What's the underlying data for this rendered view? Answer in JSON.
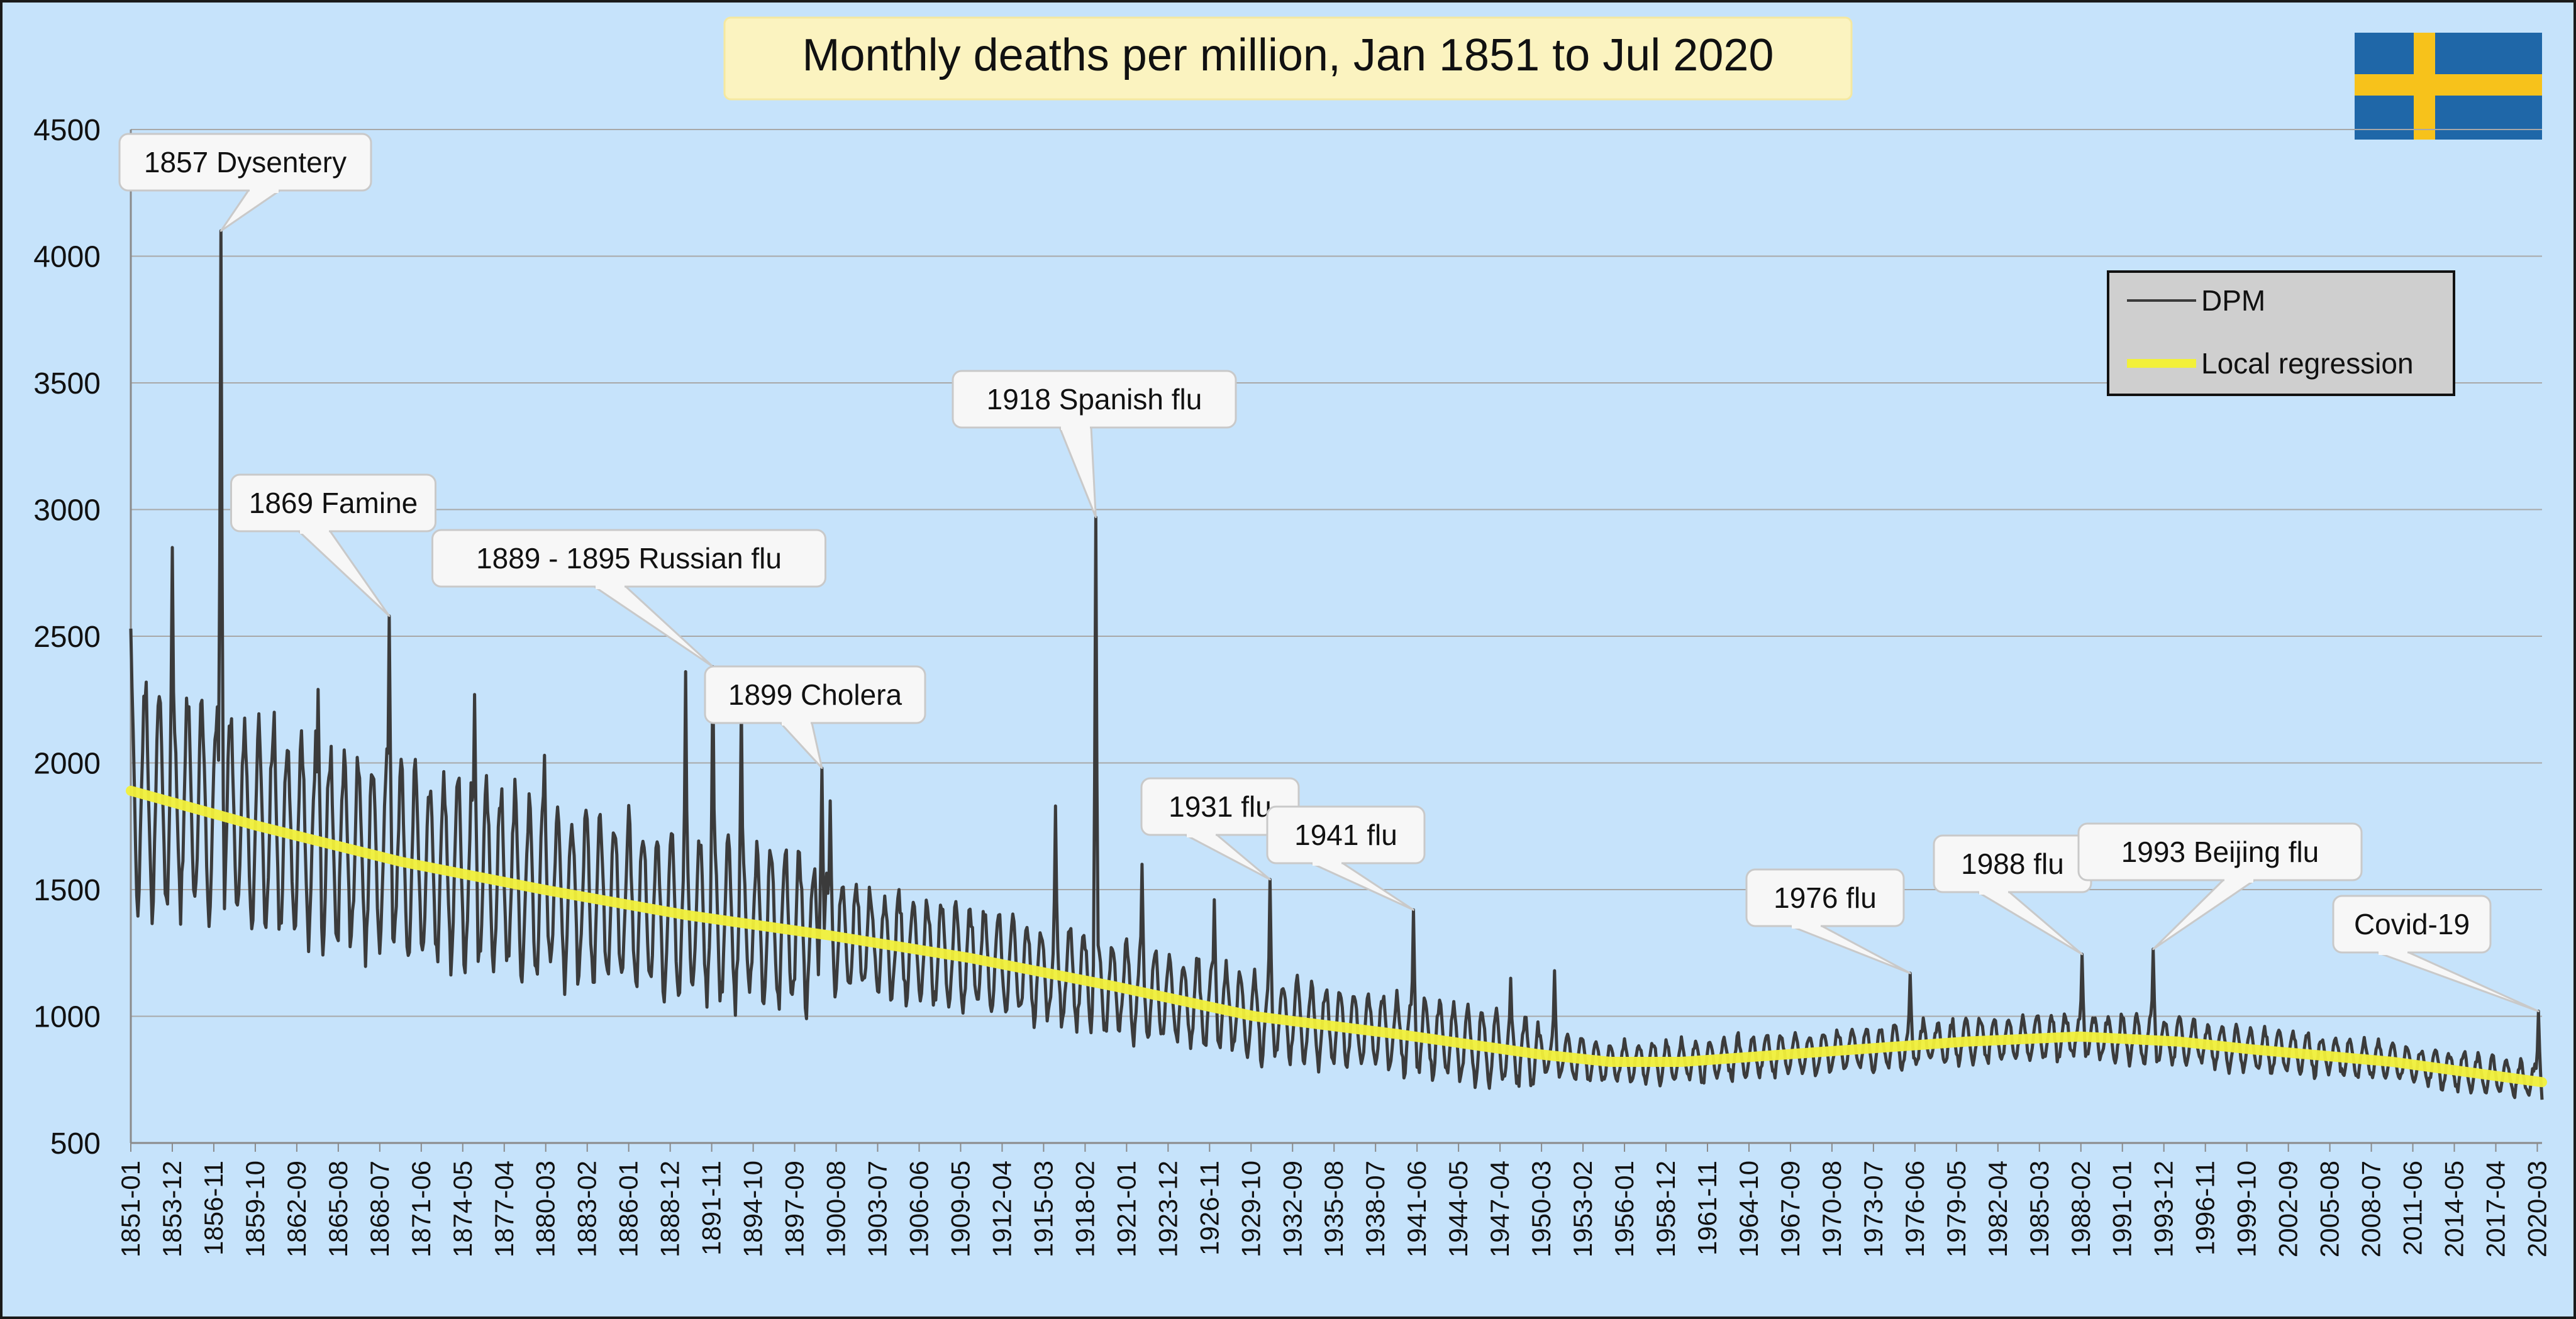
{
  "chart_data": {
    "type": "line",
    "title": "Monthly deaths per million, Jan 1851 to Jul 2020",
    "xlabel": "",
    "ylabel": "",
    "ylim": [
      500,
      4500
    ],
    "yticks": [
      500,
      1000,
      1500,
      2000,
      2500,
      3000,
      3500,
      4000,
      4500
    ],
    "grid": true,
    "legend_position": "top-right",
    "x_range": [
      "1851-01",
      "2020-07"
    ],
    "x_tick_labels": [
      "1851-01",
      "1853-12",
      "1856-11",
      "1859-10",
      "1862-09",
      "1865-08",
      "1868-07",
      "1871-06",
      "1874-05",
      "1877-04",
      "1880-03",
      "1883-02",
      "1886-01",
      "1888-12",
      "1891-11",
      "1894-10",
      "1897-09",
      "1900-08",
      "1903-07",
      "1906-06",
      "1909-05",
      "1912-04",
      "1915-03",
      "1918-02",
      "1921-01",
      "1923-12",
      "1926-11",
      "1929-10",
      "1932-09",
      "1935-08",
      "1938-07",
      "1941-06",
      "1944-05",
      "1947-04",
      "1950-03",
      "1953-02",
      "1956-01",
      "1958-12",
      "1961-11",
      "1964-10",
      "1967-09",
      "1970-08",
      "1973-07",
      "1976-06",
      "1979-05",
      "1982-04",
      "1985-03",
      "1988-02",
      "1991-01",
      "1993-12",
      "1996-11",
      "1999-10",
      "2002-09",
      "2005-08",
      "2008-07",
      "2011-06",
      "2014-05",
      "2017-04",
      "2020-03"
    ],
    "series": [
      {
        "name": "DPM",
        "color": "#3b3b3b",
        "note_points": [
          {
            "x": "1851-01",
            "y": 2530
          },
          {
            "x": "1853-12",
            "y": 2850
          },
          {
            "x": "1857-05",
            "y": 4100
          },
          {
            "x": "1861-02",
            "y": 2200
          },
          {
            "x": "1864-03",
            "y": 2290
          },
          {
            "x": "1869-03",
            "y": 2580
          },
          {
            "x": "1875-03",
            "y": 2270
          },
          {
            "x": "1880-02",
            "y": 2030
          },
          {
            "x": "1890-01",
            "y": 2360
          },
          {
            "x": "1891-12",
            "y": 2380
          },
          {
            "x": "1893-12",
            "y": 2240
          },
          {
            "x": "1899-08",
            "y": 1980
          },
          {
            "x": "1900-03",
            "y": 1850
          },
          {
            "x": "1916-01",
            "y": 1830
          },
          {
            "x": "1918-11",
            "y": 2970
          },
          {
            "x": "1922-02",
            "y": 1600
          },
          {
            "x": "1927-03",
            "y": 1460
          },
          {
            "x": "1931-02",
            "y": 1540
          },
          {
            "x": "1941-03",
            "y": 1420
          },
          {
            "x": "1948-01",
            "y": 1150
          },
          {
            "x": "1951-02",
            "y": 1180
          },
          {
            "x": "1976-02",
            "y": 1170
          },
          {
            "x": "1988-03",
            "y": 1245
          },
          {
            "x": "1993-03",
            "y": 1265
          },
          {
            "x": "2020-04",
            "y": 1020
          }
        ]
      },
      {
        "name": "Local regression",
        "color": "#f2f03a",
        "x": [
          1851.0,
          1860,
          1870,
          1880,
          1890,
          1900,
          1910,
          1920,
          1930,
          1940,
          1950,
          1955,
          1960,
          1970,
          1980,
          1988,
          1995,
          2000,
          2010,
          2020.5
        ],
        "values": [
          1890,
          1750,
          1610,
          1500,
          1400,
          1320,
          1230,
          1120,
          1000,
          930,
          850,
          820,
          820,
          860,
          900,
          920,
          900,
          870,
          820,
          740
        ]
      }
    ],
    "annotations": [
      {
        "text": "1857 Dysentery",
        "x": "1857-05",
        "y": 4100
      },
      {
        "text": "1869 Famine",
        "x": "1869-03",
        "y": 2580
      },
      {
        "text": "1889 - 1895 Russian flu",
        "x": "1891-12",
        "y": 2380
      },
      {
        "text": "1899 Cholera",
        "x": "1899-08",
        "y": 1980
      },
      {
        "text": "1918 Spanish flu",
        "x": "1918-11",
        "y": 2970
      },
      {
        "text": "1931 flu",
        "x": "1931-02",
        "y": 1540
      },
      {
        "text": "1941 flu",
        "x": "1941-03",
        "y": 1420
      },
      {
        "text": "1976 flu",
        "x": "1976-02",
        "y": 1170
      },
      {
        "text": "1988 flu",
        "x": "1988-03",
        "y": 1245
      },
      {
        "text": "1993 Beijing flu",
        "x": "1993-03",
        "y": 1265
      },
      {
        "text": "Covid-19",
        "x": "2020-04",
        "y": 1020
      }
    ]
  },
  "flag": {
    "name": "sweden-flag-icon",
    "blue": "#1f67a8",
    "yellow": "#f7c21b"
  },
  "legend": {
    "items": [
      "DPM",
      "Local regression"
    ]
  }
}
